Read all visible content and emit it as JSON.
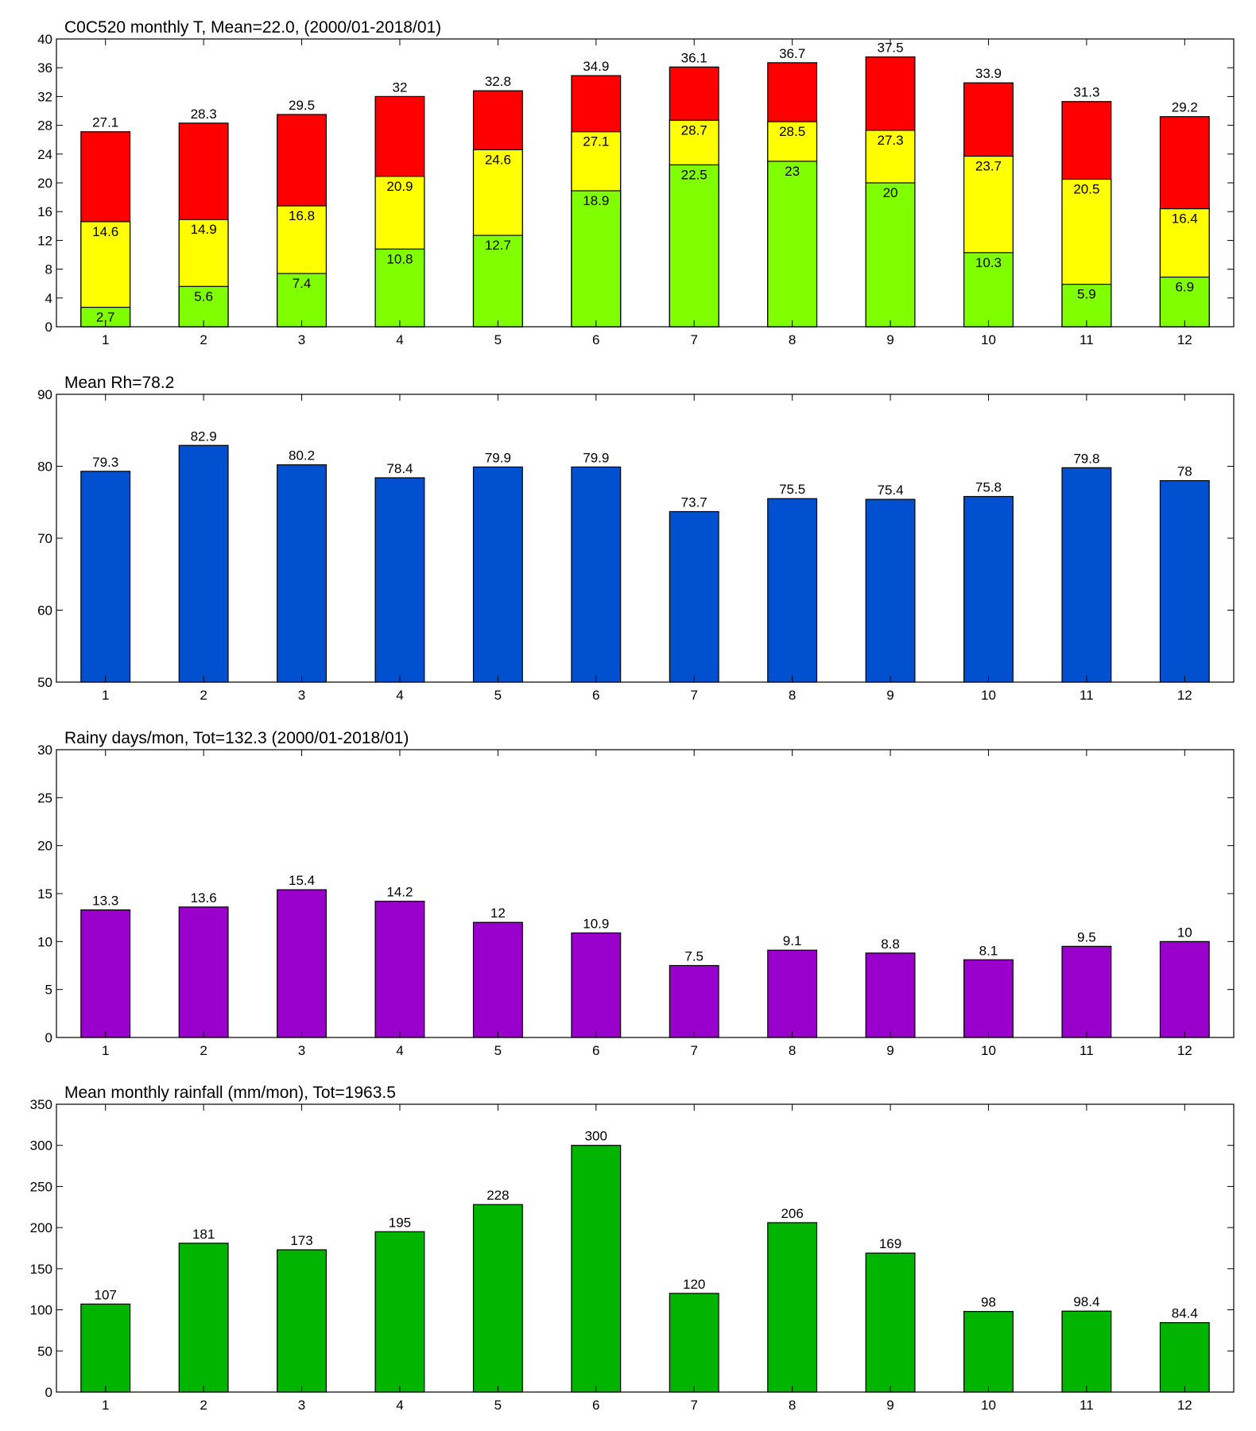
{
  "chart_data": [
    {
      "type": "bar",
      "title": "C0C520 monthly T, Mean=22.0, (2000/01-2018/01)",
      "categories": [
        "1",
        "2",
        "3",
        "4",
        "5",
        "6",
        "7",
        "8",
        "9",
        "10",
        "11",
        "12"
      ],
      "series": [
        {
          "color": "#ff0000",
          "values": [
            27.1,
            28.3,
            29.5,
            32,
            32.8,
            34.9,
            36.1,
            36.7,
            37.5,
            33.9,
            31.3,
            29.2
          ]
        },
        {
          "color": "#ffff00",
          "values": [
            14.6,
            14.9,
            16.8,
            20.9,
            24.6,
            27.1,
            28.7,
            28.5,
            27.3,
            23.7,
            20.5,
            16.4
          ]
        },
        {
          "color": "#80ff00",
          "values": [
            2.7,
            5.6,
            7.4,
            10.8,
            12.7,
            18.9,
            22.5,
            23,
            20,
            10.3,
            5.9,
            6.9
          ]
        }
      ],
      "ylim": [
        0,
        40
      ],
      "yticks": [
        0,
        4,
        8,
        12,
        16,
        20,
        24,
        28,
        32,
        36,
        40
      ]
    },
    {
      "type": "bar",
      "title": "Mean Rh=78.2",
      "categories": [
        "1",
        "2",
        "3",
        "4",
        "5",
        "6",
        "7",
        "8",
        "9",
        "10",
        "11",
        "12"
      ],
      "series": [
        {
          "color": "#0050d0",
          "values": [
            79.3,
            82.9,
            80.2,
            78.4,
            79.9,
            79.9,
            73.7,
            75.5,
            75.4,
            75.8,
            79.8,
            78
          ]
        }
      ],
      "ylim": [
        50,
        90
      ],
      "yticks": [
        50,
        60,
        70,
        80,
        90
      ]
    },
    {
      "type": "bar",
      "title": "Rainy days/mon, Tot=132.3 (2000/01-2018/01)",
      "categories": [
        "1",
        "2",
        "3",
        "4",
        "5",
        "6",
        "7",
        "8",
        "9",
        "10",
        "11",
        "12"
      ],
      "series": [
        {
          "color": "#9900cc",
          "values": [
            13.3,
            13.6,
            15.4,
            14.2,
            12,
            10.9,
            7.5,
            9.1,
            8.8,
            8.1,
            9.5,
            10
          ]
        }
      ],
      "ylim": [
        0,
        30
      ],
      "yticks": [
        0,
        5,
        10,
        15,
        20,
        25,
        30
      ]
    },
    {
      "type": "bar",
      "title": "Mean monthly rainfall (mm/mon), Tot=1963.5",
      "categories": [
        "1",
        "2",
        "3",
        "4",
        "5",
        "6",
        "7",
        "8",
        "9",
        "10",
        "11",
        "12"
      ],
      "series": [
        {
          "color": "#00b400",
          "values": [
            107,
            181,
            173,
            195,
            228,
            300,
            120,
            206,
            169,
            98,
            98.4,
            84.4
          ]
        }
      ],
      "ylim": [
        0,
        350
      ],
      "yticks": [
        0,
        50,
        100,
        150,
        200,
        250,
        300,
        350
      ]
    }
  ]
}
